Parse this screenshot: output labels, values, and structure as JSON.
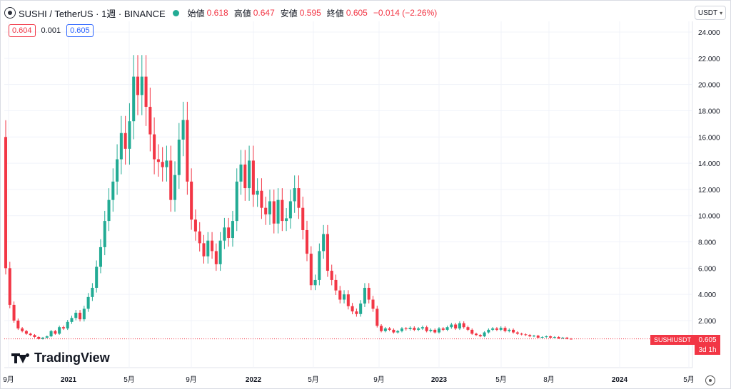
{
  "header": {
    "symbol_title": "SUSHI / TetherUS · 1週 · BINANCE",
    "open_label": "始値",
    "open_value": "0.618",
    "high_label": "高値",
    "high_value": "0.647",
    "low_label": "安値",
    "low_value": "0.595",
    "close_label": "終値",
    "close_value": "0.605",
    "change_text": "−0.014 (−2.26%)"
  },
  "quotes": {
    "bid": "0.604",
    "spread": "0.001",
    "ask": "0.605"
  },
  "currency_selector": {
    "label": "USDT"
  },
  "brand": {
    "name": "TradingView"
  },
  "price_tag": {
    "symbol": "SUSHIUSDT",
    "price": "0.605",
    "countdown": "3d 1h"
  },
  "colors": {
    "up": "#22ab94",
    "down": "#f23645",
    "grid": "#f0f3fa",
    "axis_text": "#131722"
  },
  "chart_data": {
    "type": "candlestick",
    "title": "SUSHI / TetherUS · 1週 · BINANCE",
    "y_ticks": [
      "24.000",
      "22.000",
      "20.000",
      "18.000",
      "16.000",
      "14.000",
      "12.000",
      "10.000",
      "8.000",
      "6.000",
      "4.000",
      "2.000"
    ],
    "x_ticks": [
      "9月",
      "2021",
      "5月",
      "9月",
      "2022",
      "5月",
      "9月",
      "2023",
      "5月",
      "8月",
      "2024",
      "5月"
    ],
    "x_ticks_bold": [
      "2021",
      "2022",
      "2023",
      "2024"
    ],
    "ylim": [
      0,
      25
    ],
    "last_price": 0.605,
    "closes": [
      6.0,
      3.2,
      2.0,
      1.4,
      1.2,
      1.0,
      0.9,
      0.75,
      0.6,
      0.7,
      0.8,
      1.2,
      1.0,
      1.5,
      1.4,
      1.9,
      2.2,
      2.6,
      2.1,
      2.9,
      3.8,
      4.5,
      6.1,
      7.6,
      9.6,
      11.2,
      12.6,
      14.3,
      16.3,
      15.1,
      17.2,
      20.6,
      19.2,
      20.6,
      18.3,
      16.2,
      14.3,
      14.1,
      13.7,
      14.2,
      11.2,
      13.1,
      15.8,
      17.3,
      12.6,
      9.7,
      8.8,
      7.9,
      6.9,
      8.1,
      7.3,
      6.3,
      8.1,
      9.1,
      8.3,
      9.6,
      12.6,
      13.9,
      12.1,
      14.2,
      11.6,
      11.9,
      10.6,
      10.1,
      11.1,
      9.4,
      11.2,
      9.6,
      9.8,
      11.1,
      12.1,
      10.6,
      8.9,
      7.1,
      4.7,
      5.1,
      7.3,
      8.6,
      5.8,
      5.1,
      4.3,
      3.6,
      4.0,
      3.1,
      2.7,
      2.5,
      3.3,
      4.5,
      3.6,
      2.9,
      1.6,
      1.2,
      1.4,
      1.3,
      1.1,
      1.2,
      1.4,
      1.35,
      1.45,
      1.3,
      1.4,
      1.5,
      1.2,
      1.3,
      1.1,
      1.4,
      1.3,
      1.5,
      1.7,
      1.4,
      1.8,
      1.5,
      1.3,
      1.0,
      0.9,
      0.8,
      1.1,
      1.3,
      1.4,
      1.3,
      1.45,
      1.2,
      1.3,
      1.1,
      1.0,
      0.95,
      0.9,
      0.8,
      0.85,
      0.7,
      0.75,
      0.8,
      0.7,
      0.75,
      0.65,
      0.7,
      0.62,
      0.605
    ],
    "opens": [
      16.0,
      6.0,
      3.2,
      2.0,
      1.4,
      1.2,
      1.0,
      0.9,
      0.75,
      0.6,
      0.7,
      0.8,
      1.2,
      1.0,
      1.5,
      1.4,
      1.9,
      2.2,
      2.6,
      2.1,
      2.9,
      3.8,
      4.5,
      6.1,
      7.6,
      9.6,
      11.2,
      12.6,
      14.3,
      16.3,
      15.1,
      17.2,
      20.6,
      19.2,
      20.6,
      18.3,
      16.2,
      14.3,
      14.1,
      13.7,
      14.2,
      11.2,
      13.1,
      15.8,
      17.3,
      12.6,
      9.7,
      8.8,
      7.9,
      6.9,
      8.1,
      7.3,
      6.3,
      8.1,
      9.1,
      8.3,
      9.6,
      12.6,
      13.9,
      12.1,
      14.2,
      11.6,
      11.9,
      10.6,
      10.1,
      11.1,
      9.4,
      11.2,
      9.6,
      9.8,
      11.1,
      12.1,
      10.6,
      8.9,
      7.1,
      4.7,
      5.1,
      7.3,
      8.6,
      5.8,
      5.1,
      4.3,
      3.6,
      4.0,
      3.1,
      2.7,
      2.5,
      3.3,
      4.5,
      3.6,
      2.9,
      1.6,
      1.2,
      1.4,
      1.3,
      1.1,
      1.2,
      1.4,
      1.35,
      1.45,
      1.3,
      1.4,
      1.5,
      1.2,
      1.3,
      1.1,
      1.4,
      1.3,
      1.5,
      1.7,
      1.4,
      1.8,
      1.5,
      1.3,
      1.0,
      0.9,
      0.8,
      1.1,
      1.3,
      1.4,
      1.3,
      1.45,
      1.2,
      1.3,
      1.1,
      1.0,
      0.95,
      0.9,
      0.8,
      0.85,
      0.7,
      0.75,
      0.8,
      0.7,
      0.75,
      0.65,
      0.7,
      0.618
    ]
  }
}
